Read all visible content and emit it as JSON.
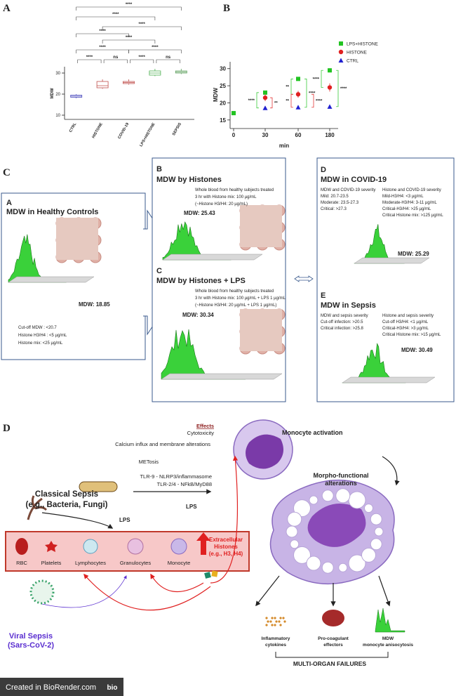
{
  "chart_data": [
    {
      "type": "box",
      "label": "A",
      "y_label": "MDW",
      "categories": [
        "CTRL",
        "HISTONE",
        "COVID-19",
        "LPS+HISTONE",
        "SEPSIS"
      ],
      "min": [
        18,
        22.5,
        24.5,
        28.5,
        29.5
      ],
      "q1": [
        18.5,
        23,
        25,
        29,
        30
      ],
      "median": [
        19,
        24,
        25.5,
        30,
        30.5
      ],
      "q3": [
        19.5,
        26,
        26,
        31,
        31
      ],
      "max": [
        20,
        27,
        27,
        32,
        32
      ],
      "colors": [
        "#4b4bbf",
        "#c0504d",
        "#c0504d",
        "#4caf50",
        "#5a9e5a"
      ],
      "ylim": [
        8,
        33
      ],
      "yticks": [
        10,
        20,
        30
      ],
      "significance": [
        "****",
        "****",
        "****",
        "****",
        "****",
        "****",
        "****",
        "****",
        "ns",
        "****",
        "ns"
      ]
    },
    {
      "type": "scatter",
      "label": "B",
      "x_label": "min",
      "y_label": "MDW",
      "categories": [
        "0",
        "30",
        "60",
        "180"
      ],
      "series": [
        {
          "name": "LPS+HISTONE",
          "color": "#22c322",
          "marker": "square",
          "values": [
            17,
            23,
            27,
            29.5
          ],
          "errors": [
            0.4,
            0.5,
            0.5,
            0.6
          ]
        },
        {
          "name": "HISTONE",
          "color": "#e02020",
          "marker": "circle",
          "values": [
            null,
            21.5,
            22.5,
            24.5
          ],
          "errors": [
            null,
            1,
            1,
            1.2
          ]
        },
        {
          "name": "CTRL",
          "color": "#2020d0",
          "marker": "triangle",
          "values": [
            null,
            18.5,
            18.7,
            18.9
          ],
          "errors": [
            null,
            0.3,
            0.3,
            0.3
          ]
        }
      ],
      "ylim": [
        12.5,
        32
      ],
      "yticks": [
        15,
        20,
        25,
        30
      ],
      "legend": "upper right",
      "significance": [
        "****",
        "**",
        "**",
        "**",
        "****",
        "****",
        "****",
        "****"
      ]
    }
  ],
  "panel_c": {
    "label": "C",
    "a": {
      "label": "A",
      "title": "MDW in Healthy Controls",
      "mdw": "MDW: 18.85",
      "notes": [
        "Cut-off MDW : <20.7",
        "Histone H3/H4 : <5 µg/mL",
        "Histone mix: <25 µg/mL"
      ]
    },
    "b": {
      "label": "B",
      "title": "MDW by Histones",
      "description": [
        "Whole blood from healthy subjects treated",
        "3 hr with Histone mix: 100 µg/mL",
        "(~Histone H3/H4: 20 µg/mL)"
      ],
      "mdw": "MDW: 25.43"
    },
    "c": {
      "label": "C",
      "title": "MDW by Histones + LPS",
      "description": [
        "Whole blood from healthy subjects treated",
        "3 hr with Histone mix: 100 µg/mL + LPS 1 µg/mL",
        "(~Histone H3/H4: 20 µg/mL + LPS 1 µg/mL)"
      ],
      "mdw": "MDW: 30.34"
    },
    "d": {
      "label": "D",
      "title": "MDW in COVID-19",
      "left": [
        "MDW and COVID-19 severity",
        "Mild:  20.7-23.5",
        "Moderate:  23.5-27.3",
        "Critical: >27.3"
      ],
      "right": [
        "Histone and COVID-19 severity",
        "Mild-H3/H4: <3 µg/mL",
        "Moderate-H3/H4: 3-11 µg/mL",
        "Critical-H3/H4: >25 µg/mL",
        "Critical Histone mix: >125 µg/mL"
      ],
      "mdw": "MDW: 25.29"
    },
    "e": {
      "label": "E",
      "title": "MDW in Sepsis",
      "left": [
        "MDW and sepsis severity",
        "Cut-off infection: >20.5",
        "Critical infection: >25.8"
      ],
      "right": [
        "Histone and sepsis severity",
        "Cut-off H3/H4: <1 µg/mL",
        "Critical-H3/H4: >3 µg/mL",
        "Critical Histone mix: >15 µg/mL"
      ],
      "mdw": "MDW: 30.49"
    }
  },
  "panel_d": {
    "label": "D",
    "effects_title": "Effects",
    "effects": [
      "Cytotoxicity",
      "Calcium influx and membrane alterations",
      "METosis",
      "TLR-9 - NLRP3/inflammasome",
      "TLR-2/4 - NFkB/MyD88"
    ],
    "monocyte_activation": "Monocyte activation",
    "morpho": [
      "Morpho-functional",
      "alterations"
    ],
    "classical_sepsis": [
      "Classical Sepsis",
      "(e.g., Bacteria, Fungi)"
    ],
    "lps": [
      "LPS",
      "LPS"
    ],
    "cells": [
      "RBC",
      "Platelets",
      "Lymphocytes",
      "Granulocytes",
      "Monocyte"
    ],
    "histones": [
      "Extracellular",
      "Histones",
      "(e.g., H3, H4)"
    ],
    "viral_sepsis": [
      "Viral Sepsis",
      "(Sars-CoV-2)"
    ],
    "outcomes": [
      [
        "Inflammatory",
        "cytokines"
      ],
      [
        "Pro-coagulant",
        "effectors"
      ],
      [
        "MDW",
        "monocyte anisocytosis"
      ]
    ],
    "failure": "MULTI-ORGAN FAILURES"
  },
  "footer": {
    "text": "Created in BioRender.com",
    "logo": "bio"
  }
}
